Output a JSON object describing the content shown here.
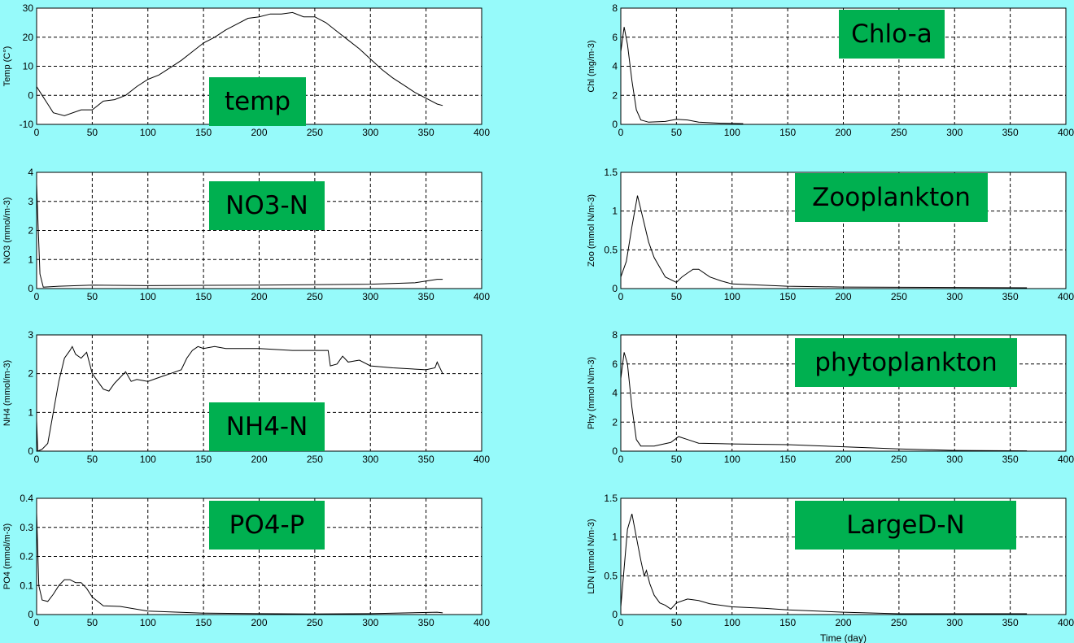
{
  "colors": {
    "background": "#96FAFA",
    "plot_bg": "#FFFFFF",
    "tag_bg": "#00B050",
    "line": "#000000"
  },
  "chart_data": [
    {
      "type": "line",
      "tag": "temp",
      "ylabel": "Temp (C°)",
      "xlabel": "",
      "xlim": [
        0,
        400
      ],
      "ylim": [
        -10,
        30
      ],
      "xticks": [
        0,
        50,
        100,
        150,
        200,
        250,
        300,
        350,
        400
      ],
      "yticks": [
        -10,
        0,
        10,
        20,
        30
      ],
      "grid": true,
      "x": [
        0,
        5,
        10,
        15,
        25,
        40,
        50,
        60,
        70,
        80,
        90,
        100,
        110,
        120,
        130,
        140,
        150,
        160,
        170,
        180,
        190,
        200,
        210,
        220,
        230,
        240,
        250,
        260,
        270,
        280,
        290,
        300,
        310,
        320,
        330,
        340,
        350,
        360,
        365
      ],
      "y": [
        3,
        0,
        -3,
        -6,
        -7,
        -5,
        -5,
        -2,
        -1.5,
        0,
        3,
        5.5,
        7,
        9.5,
        12,
        15,
        18,
        20,
        22.5,
        24.5,
        26.5,
        27,
        28,
        28,
        28.5,
        27,
        27,
        25,
        22,
        19,
        16,
        12.5,
        9,
        6,
        3.5,
        1,
        -1,
        -3,
        -3.5
      ]
    },
    {
      "type": "line",
      "tag": "Chlo-a",
      "ylabel": "Chl (mg/m-3)",
      "xlabel": "",
      "xlim": [
        0,
        400
      ],
      "ylim": [
        0,
        8
      ],
      "xticks": [
        0,
        50,
        100,
        150,
        200,
        250,
        300,
        350,
        400
      ],
      "yticks": [
        0,
        2,
        4,
        6,
        8
      ],
      "grid": true,
      "x": [
        0,
        3,
        6,
        10,
        14,
        18,
        25,
        40,
        50,
        60,
        70,
        90,
        110
      ],
      "y": [
        5,
        6.7,
        5.5,
        3,
        1,
        0.3,
        0.15,
        0.2,
        0.35,
        0.3,
        0.15,
        0.08,
        0.05
      ]
    },
    {
      "type": "line",
      "tag": "NO3-N",
      "ylabel": "NO3 (mmol/m-3)",
      "xlabel": "",
      "xlim": [
        0,
        400
      ],
      "ylim": [
        0,
        4
      ],
      "xticks": [
        0,
        50,
        100,
        150,
        200,
        250,
        300,
        350,
        400
      ],
      "yticks": [
        0,
        1,
        2,
        3,
        4
      ],
      "grid": true,
      "x": [
        0,
        1,
        3,
        6,
        20,
        50,
        100,
        200,
        300,
        340,
        360,
        365
      ],
      "y": [
        3.6,
        2.5,
        0.5,
        0.05,
        0.08,
        0.12,
        0.1,
        0.12,
        0.15,
        0.2,
        0.32,
        0.32
      ]
    },
    {
      "type": "line",
      "tag": "Zooplankton",
      "ylabel": "Zoo (mmol N/m-3)",
      "xlabel": "",
      "xlim": [
        0,
        400
      ],
      "ylim": [
        0,
        1.5
      ],
      "xticks": [
        0,
        50,
        100,
        150,
        200,
        250,
        300,
        350,
        400
      ],
      "yticks": [
        0,
        0.5,
        1,
        1.5
      ],
      "grid": true,
      "x": [
        0,
        5,
        10,
        15,
        20,
        25,
        30,
        40,
        50,
        55,
        60,
        65,
        70,
        80,
        90,
        100,
        150,
        200,
        365
      ],
      "y": [
        0.15,
        0.35,
        0.8,
        1.2,
        0.9,
        0.6,
        0.4,
        0.15,
        0.08,
        0.15,
        0.2,
        0.25,
        0.25,
        0.15,
        0.1,
        0.06,
        0.03,
        0.02,
        0.01
      ]
    },
    {
      "type": "line",
      "tag": "NH4-N",
      "ylabel": "NH4 (mmol/m-3)",
      "xlabel": "",
      "xlim": [
        0,
        400
      ],
      "ylim": [
        0,
        3
      ],
      "xticks": [
        0,
        50,
        100,
        150,
        200,
        250,
        300,
        350,
        400
      ],
      "yticks": [
        0,
        1,
        2,
        3
      ],
      "grid": true,
      "x": [
        0,
        1,
        5,
        10,
        15,
        20,
        25,
        30,
        32,
        35,
        40,
        45,
        50,
        55,
        60,
        65,
        70,
        75,
        80,
        85,
        90,
        100,
        110,
        120,
        130,
        135,
        140,
        145,
        150,
        160,
        170,
        200,
        230,
        262,
        264,
        270,
        275,
        280,
        290,
        300,
        320,
        350,
        358,
        360,
        365
      ],
      "y": [
        0.8,
        0,
        0.05,
        0.2,
        1,
        1.8,
        2.4,
        2.6,
        2.7,
        2.5,
        2.4,
        2.55,
        2.0,
        1.8,
        1.6,
        1.55,
        1.75,
        1.9,
        2.05,
        1.8,
        1.85,
        1.8,
        1.9,
        2.0,
        2.1,
        2.4,
        2.6,
        2.7,
        2.65,
        2.7,
        2.65,
        2.65,
        2.6,
        2.6,
        2.2,
        2.25,
        2.45,
        2.3,
        2.35,
        2.2,
        2.15,
        2.1,
        2.15,
        2.3,
        2.0
      ]
    },
    {
      "type": "line",
      "tag": "phytoplankton",
      "ylabel": "Phy (mmol N/m-3)",
      "xlabel": "",
      "xlim": [
        0,
        400
      ],
      "ylim": [
        0,
        8
      ],
      "xticks": [
        0,
        50,
        100,
        150,
        200,
        250,
        300,
        350,
        400
      ],
      "yticks": [
        0,
        2,
        4,
        6,
        8
      ],
      "grid": true,
      "x": [
        0,
        3,
        6,
        10,
        14,
        18,
        30,
        45,
        52,
        60,
        70,
        100,
        150,
        200,
        250,
        300,
        365
      ],
      "y": [
        5,
        6.8,
        6,
        3,
        0.8,
        0.35,
        0.35,
        0.6,
        1.0,
        0.8,
        0.55,
        0.5,
        0.45,
        0.3,
        0.15,
        0.05,
        0.02
      ]
    },
    {
      "type": "line",
      "tag": "PO4-P",
      "ylabel": "PO4 (mmol/m-3)",
      "xlabel": "",
      "xlim": [
        0,
        400
      ],
      "ylim": [
        0,
        0.4
      ],
      "xticks": [
        0,
        50,
        100,
        150,
        200,
        250,
        300,
        350,
        400
      ],
      "yticks": [
        0,
        0.1,
        0.2,
        0.3,
        0.4
      ],
      "grid": true,
      "x": [
        0,
        2,
        5,
        10,
        15,
        20,
        25,
        30,
        35,
        40,
        45,
        50,
        60,
        75,
        100,
        150,
        200,
        250,
        300,
        360,
        365
      ],
      "y": [
        0.35,
        0.1,
        0.05,
        0.045,
        0.07,
        0.1,
        0.12,
        0.12,
        0.11,
        0.11,
        0.09,
        0.06,
        0.03,
        0.028,
        0.012,
        0.005,
        0.003,
        0.002,
        0.003,
        0.008,
        0.006
      ]
    },
    {
      "type": "line",
      "tag": "LargeD-N",
      "ylabel": "LDN (mmol N/m-3)",
      "xlabel": "Time (day)",
      "xlim": [
        0,
        400
      ],
      "ylim": [
        0,
        1.5
      ],
      "xticks": [
        0,
        50,
        100,
        150,
        200,
        250,
        300,
        350,
        400
      ],
      "yticks": [
        0,
        0.5,
        1,
        1.5
      ],
      "grid": true,
      "x": [
        0,
        3,
        6,
        10,
        14,
        18,
        21,
        23,
        26,
        30,
        35,
        40,
        45,
        50,
        60,
        70,
        80,
        100,
        130,
        150,
        200,
        250,
        365
      ],
      "y": [
        0.1,
        0.6,
        1.1,
        1.3,
        1.0,
        0.7,
        0.5,
        0.57,
        0.4,
        0.25,
        0.15,
        0.12,
        0.07,
        0.15,
        0.2,
        0.18,
        0.14,
        0.1,
        0.08,
        0.06,
        0.03,
        0.01,
        0.01
      ]
    }
  ]
}
